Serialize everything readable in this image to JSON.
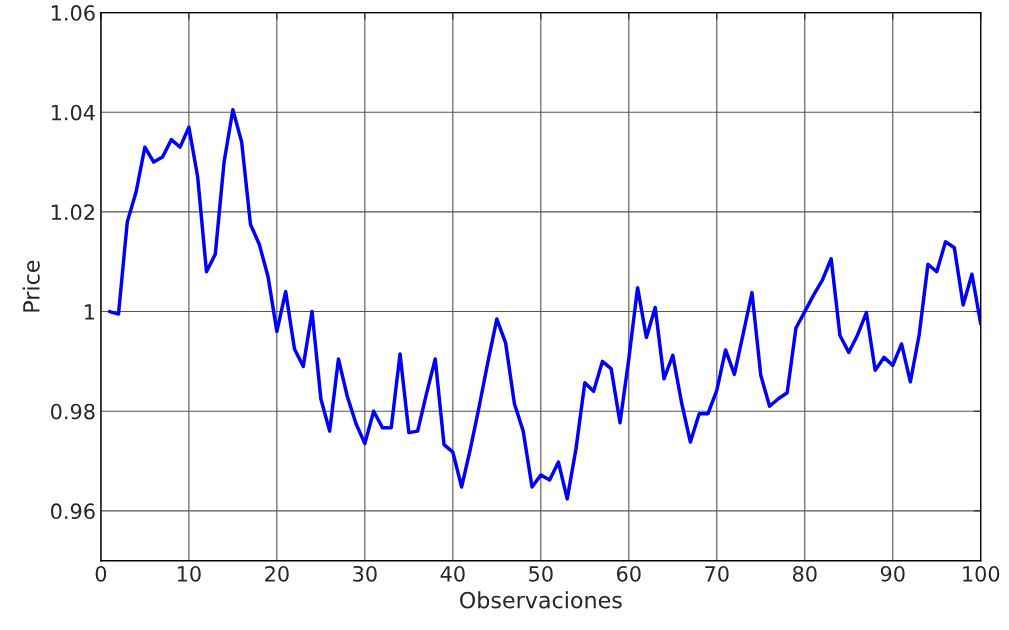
{
  "chart_data": {
    "type": "line",
    "xlabel": "Observaciones",
    "ylabel": "Price",
    "x": [
      1,
      2,
      3,
      4,
      5,
      6,
      7,
      8,
      9,
      10,
      11,
      12,
      13,
      14,
      15,
      16,
      17,
      18,
      19,
      20,
      21,
      22,
      23,
      24,
      25,
      26,
      27,
      28,
      29,
      30,
      31,
      32,
      33,
      34,
      35,
      36,
      37,
      38,
      39,
      40,
      41,
      42,
      43,
      44,
      45,
      46,
      47,
      48,
      49,
      50,
      51,
      52,
      53,
      54,
      55,
      56,
      57,
      58,
      59,
      60,
      61,
      62,
      63,
      64,
      65,
      66,
      67,
      68,
      69,
      70,
      71,
      72,
      73,
      74,
      75,
      76,
      77,
      78,
      79,
      80,
      81,
      82,
      83,
      84,
      85,
      86,
      87,
      88,
      89,
      90,
      91,
      92,
      93,
      94,
      95,
      96,
      97,
      98,
      99,
      100
    ],
    "series": [
      {
        "color": "#0000ff",
        "values": [
          1.0,
          0.9995,
          1.018,
          1.024,
          1.033,
          1.03,
          1.031,
          1.0345,
          1.033,
          1.037,
          1.027,
          1.008,
          1.0115,
          1.03,
          1.0405,
          1.034,
          1.0175,
          1.0135,
          1.007,
          0.996,
          1.004,
          0.9925,
          0.989,
          1.0,
          0.9825,
          0.976,
          0.9905,
          0.983,
          0.9775,
          0.9735,
          0.98,
          0.9767,
          0.9767,
          0.9915,
          0.9757,
          0.976,
          0.9835,
          0.9905,
          0.9733,
          0.9718,
          0.9648,
          0.9725,
          0.981,
          0.99,
          0.9985,
          0.9937,
          0.9815,
          0.976,
          0.9648,
          0.9672,
          0.9662,
          0.9698,
          0.9624,
          0.9725,
          0.9857,
          0.984,
          0.99,
          0.9885,
          0.9777,
          0.9905,
          1.0048,
          0.9948,
          1.0008,
          0.9865,
          0.9912,
          0.9817,
          0.9738,
          0.9795,
          0.9795,
          0.9842,
          0.9923,
          0.9874,
          0.9955,
          1.0038,
          0.9872,
          0.981,
          0.9825,
          0.9837,
          0.9967,
          1.0,
          1.0033,
          1.0063,
          1.0106,
          0.9952,
          0.9918,
          0.9953,
          0.9998,
          0.9882,
          0.9908,
          0.9892,
          0.9935,
          0.9859,
          0.9953,
          1.0095,
          1.008,
          1.014,
          1.0128,
          1.0013,
          1.0075,
          0.9975
        ]
      }
    ],
    "xlim": [
      0,
      100
    ],
    "xticks": [
      0,
      10,
      20,
      30,
      40,
      50,
      60,
      70,
      80,
      90,
      100
    ],
    "ylim": [
      0.95,
      1.06
    ],
    "yticks": [
      0.96,
      0.98,
      1,
      1.02,
      1.04,
      1.06
    ],
    "grid": true,
    "line_style": "solid",
    "marker": "none"
  }
}
